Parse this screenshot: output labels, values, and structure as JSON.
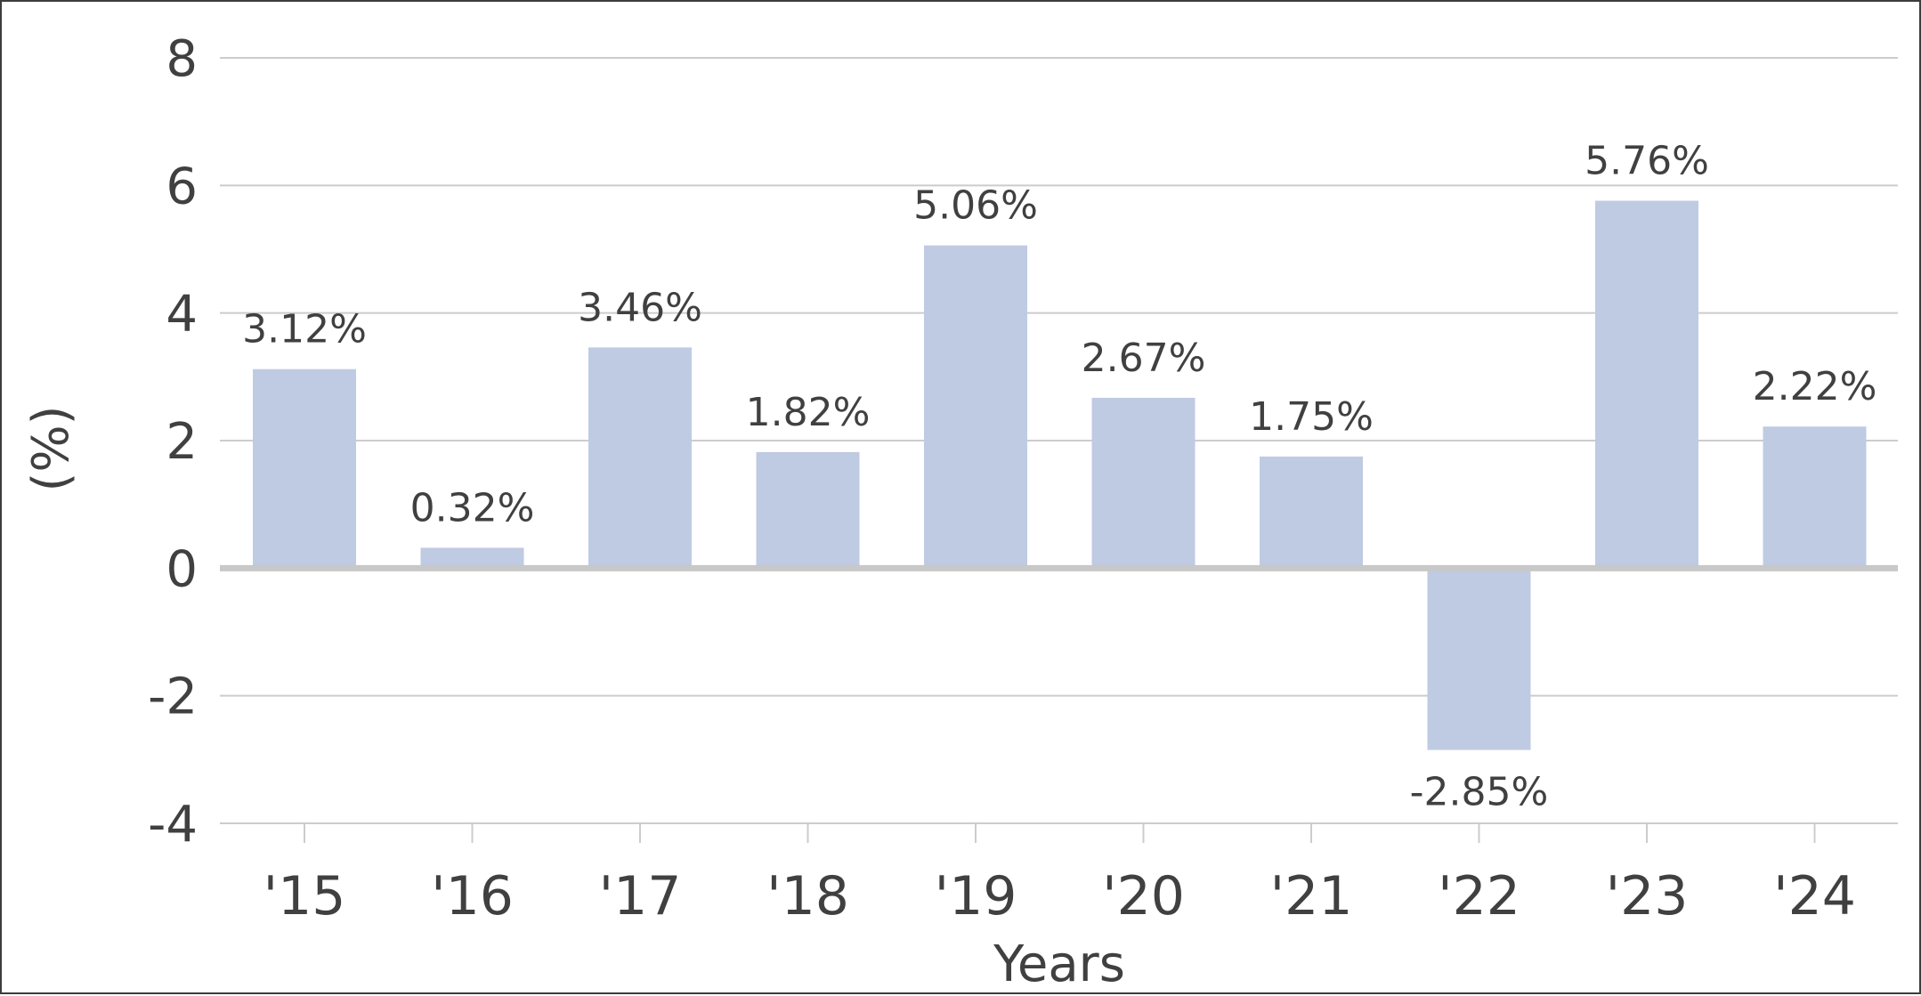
{
  "chart_data": {
    "type": "bar",
    "categories": [
      "'15",
      "'16",
      "'17",
      "'18",
      "'19",
      "'20",
      "'21",
      "'22",
      "'23",
      "'24"
    ],
    "values": [
      3.12,
      0.32,
      3.46,
      1.82,
      5.06,
      2.67,
      1.75,
      -2.85,
      5.76,
      2.22
    ],
    "data_labels": [
      "3.12%",
      "0.32%",
      "3.46%",
      "1.82%",
      "5.06%",
      "2.67%",
      "1.75%",
      "-2.85%",
      "5.76%",
      "2.22%"
    ],
    "title": "",
    "xlabel": "Years",
    "ylabel": "(%)",
    "ylim": [
      -4,
      8
    ],
    "yticks": [
      8,
      6,
      4,
      2,
      0,
      -2,
      -4
    ],
    "ytick_labels": [
      "8",
      "6",
      "4",
      "2",
      "0",
      "-2",
      "-4"
    ],
    "grid": true,
    "legend": "none",
    "colors": {
      "bar": "#bfcbe3",
      "grid": "#cccccc",
      "zero_line": "#c8c8c8",
      "text": "#404040",
      "frame": "#3d3d3d"
    }
  }
}
